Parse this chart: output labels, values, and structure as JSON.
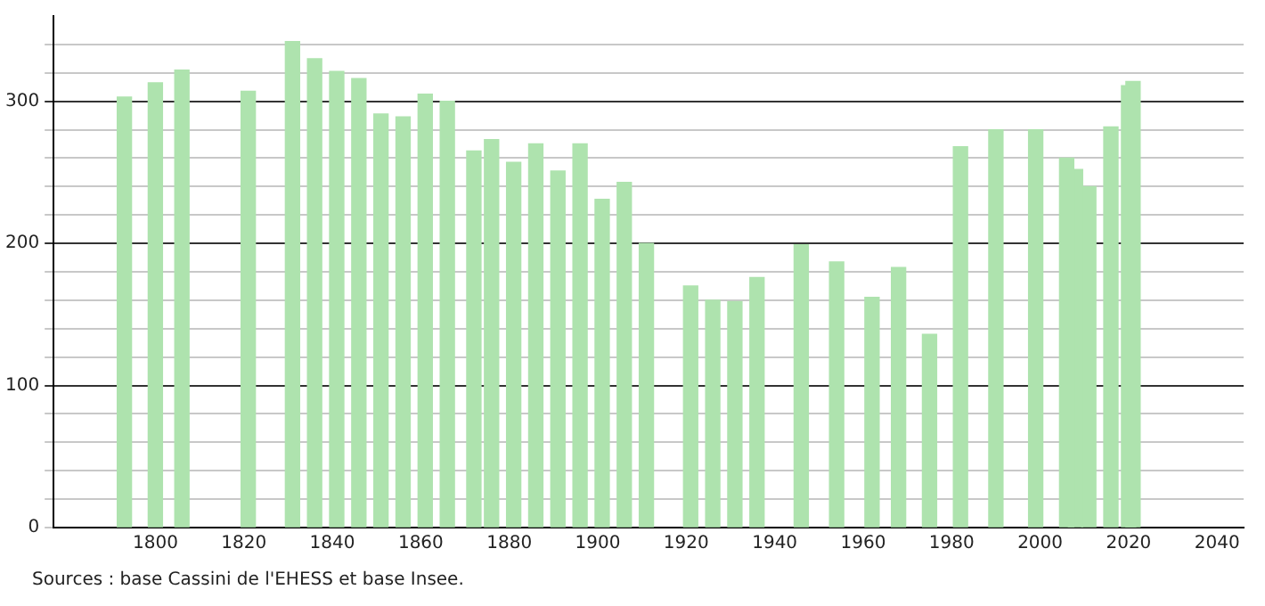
{
  "chart_data": {
    "type": "bar",
    "x": [
      1793,
      1800,
      1806,
      1821,
      1831,
      1836,
      1841,
      1846,
      1851,
      1856,
      1861,
      1866,
      1872,
      1876,
      1881,
      1886,
      1891,
      1896,
      1901,
      1906,
      1911,
      1921,
      1926,
      1931,
      1936,
      1946,
      1954,
      1962,
      1968,
      1975,
      1982,
      1990,
      1999,
      2006,
      2008,
      2011,
      2016,
      2020,
      2021
    ],
    "values": [
      303,
      313,
      322,
      307,
      342,
      330,
      321,
      316,
      291,
      289,
      305,
      300,
      265,
      273,
      257,
      270,
      251,
      270,
      231,
      243,
      200,
      170,
      160,
      159,
      176,
      199,
      187,
      162,
      183,
      136,
      268,
      280,
      280,
      260,
      252,
      240,
      282,
      311,
      314
    ],
    "color": "#aee3ae",
    "xlim": [
      1777,
      2046
    ],
    "xticks": [
      1800,
      1820,
      1840,
      1860,
      1880,
      1900,
      1920,
      1940,
      1960,
      1980,
      2000,
      2020,
      2040
    ],
    "ylim": [
      0,
      360
    ],
    "yticks": [
      0,
      {
        "value": 20,
        "label": null
      },
      {
        "value": 40,
        "label": null
      },
      {
        "value": 60,
        "label": null
      },
      {
        "value": 80,
        "label": null
      },
      100,
      {
        "value": 120,
        "label": null
      },
      {
        "value": 140,
        "label": null
      },
      {
        "value": 160,
        "label": null
      },
      {
        "value": 180,
        "label": null
      },
      200,
      {
        "value": 220,
        "label": null
      },
      {
        "value": 240,
        "label": null
      },
      {
        "value": 260,
        "label": null
      },
      {
        "value": 280,
        "label": null
      },
      300,
      {
        "value": 320,
        "label": null
      },
      {
        "value": 340,
        "label": null
      }
    ],
    "grid": "y",
    "annotations": [
      "Sources : base Cassini de l'EHESS et base Insee."
    ]
  }
}
